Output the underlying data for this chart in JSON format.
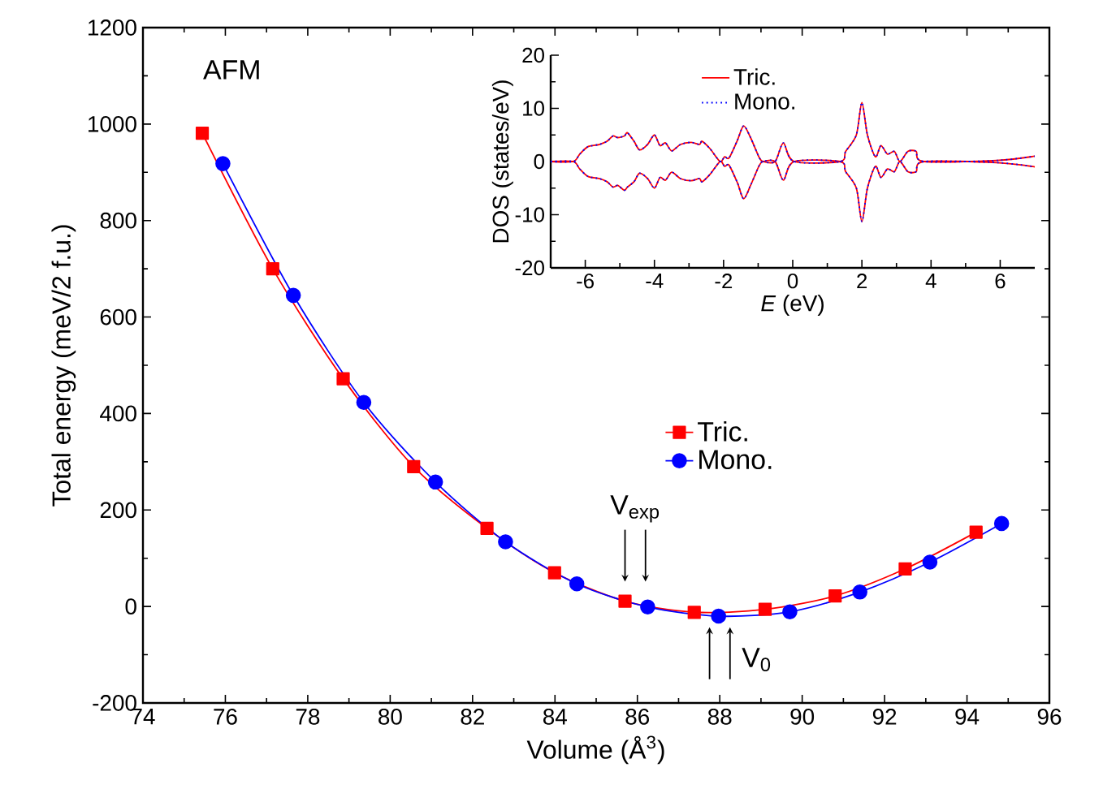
{
  "chart_data": [
    {
      "type": "line",
      "xlabel": "Volume (Å$^{3}$)",
      "ylabel": "Total energy (meV/2 f.u.)",
      "xlim": [
        74,
        96
      ],
      "ylim": [
        -200,
        1200
      ],
      "xticks": [
        74,
        76,
        78,
        80,
        82,
        84,
        86,
        88,
        90,
        92,
        94,
        96
      ],
      "yticks": [
        -200,
        0,
        200,
        400,
        600,
        800,
        1000,
        1200
      ],
      "legend": "right",
      "annotations": [
        "AFM",
        {
          "text": "V$_{exp}$",
          "x": 85.7,
          "y": 11
        },
        {
          "text": "V$_{0}$",
          "x": 88.0,
          "y": -43
        }
      ],
      "series": [
        {
          "name": "Tric.",
          "color": "#ff0000",
          "marker": "square",
          "x": [
            75.44,
            77.15,
            78.86,
            80.57,
            82.35,
            83.99,
            85.7,
            87.38,
            89.1,
            90.8,
            92.5,
            94.22
          ],
          "values": [
            981,
            700,
            472,
            290,
            162,
            70,
            11,
            -12,
            -6,
            22,
            78,
            154
          ]
        },
        {
          "name": "Mono.",
          "color": "#0000ff",
          "marker": "circle",
          "x": [
            75.94,
            77.65,
            79.36,
            81.1,
            82.8,
            84.53,
            86.25,
            87.97,
            89.7,
            91.4,
            93.1,
            94.84
          ],
          "values": [
            918,
            645,
            423,
            258,
            134,
            47,
            -1,
            -20,
            -11,
            30,
            92,
            172
          ]
        }
      ]
    },
    {
      "type": "line",
      "xlabel": "*E* (eV)",
      "ylabel": "DOS (states/eV)",
      "xlim": [
        -7,
        7
      ],
      "ylim": [
        -20,
        20
      ],
      "xticks": [
        -6,
        -4,
        -2,
        0,
        2,
        4,
        6
      ],
      "yticks": [
        -20,
        -10,
        0,
        10,
        20
      ],
      "legend": "top",
      "x": [
        -7,
        -6.35,
        -6.16,
        -5.92,
        -5.6,
        -5.37,
        -5.2,
        -5.06,
        -4.87,
        -4.78,
        -4.59,
        -4.43,
        -4.2,
        -4.0,
        -3.84,
        -3.68,
        -3.5,
        -3.25,
        -2.94,
        -2.7,
        -2.62,
        -2.39,
        -2.1,
        -1.97,
        -1.84,
        -1.6,
        -1.42,
        -1.22,
        -0.98,
        -0.86,
        -0.51,
        -0.27,
        0.04,
        1.37,
        1.53,
        1.84,
        2.0,
        2.16,
        2.39,
        2.55,
        2.74,
        2.94,
        3.1,
        3.33,
        3.57,
        3.8,
        5.9,
        7
      ],
      "series": [
        {
          "name": "Tric.",
          "color": "#ff0000",
          "line_style": "solid",
          "values": [
            0,
            0,
            1.4,
            2.8,
            3.2,
            3.8,
            4.8,
            4.5,
            4.8,
            5.4,
            3.8,
            2.2,
            3.2,
            5.0,
            3.0,
            3.5,
            2.0,
            3.2,
            3.6,
            3.2,
            3.8,
            2.4,
            0,
            0.9,
            0.7,
            4,
            6.7,
            4.5,
            0.9,
            0,
            0,
            3.5,
            0,
            0,
            1.9,
            5,
            11.1,
            5,
            0.9,
            3,
            1.4,
            1.9,
            0,
            1.9,
            1.9,
            0,
            0.2,
            1
          ]
        },
        {
          "color": "#ff0000",
          "line_style": "solid",
          "values": [
            0,
            0,
            -1.4,
            -2.8,
            -3.2,
            -3.8,
            -4.8,
            -4.5,
            -5.4,
            -4.8,
            -3.8,
            -2.2,
            -3.2,
            -5.0,
            -3.0,
            -3.5,
            -2.0,
            -3.2,
            -3.6,
            -3.2,
            -3.8,
            -2.4,
            0,
            -0.9,
            -0.7,
            -4,
            -7,
            -4.5,
            -0.9,
            0,
            0,
            -3.5,
            0,
            0,
            -1.9,
            -5,
            -11.3,
            -5,
            -0.9,
            -3,
            -1.4,
            -1.9,
            0,
            -1.9,
            -1.9,
            0,
            -0.2,
            -1
          ]
        },
        {
          "name": "Mono.",
          "color": "#0000ff",
          "line_style": "dotted",
          "values": [
            0,
            0,
            1.4,
            2.8,
            3.2,
            3.8,
            4.8,
            4.5,
            4.8,
            5.4,
            3.8,
            2.2,
            3.2,
            5.0,
            3.0,
            3.5,
            2.0,
            3.2,
            3.6,
            3.2,
            3.8,
            2.4,
            0,
            0.9,
            0.7,
            4,
            6.7,
            4.5,
            0.9,
            0,
            0,
            3.5,
            0,
            0,
            1.9,
            5,
            11.1,
            5,
            0.9,
            3,
            1.4,
            1.9,
            0,
            1.9,
            1.9,
            0,
            0.2,
            1
          ]
        },
        {
          "color": "#0000ff",
          "line_style": "dotted",
          "values": [
            0,
            0,
            -1.4,
            -2.8,
            -3.2,
            -3.8,
            -4.8,
            -4.5,
            -5.4,
            -4.8,
            -3.8,
            -2.2,
            -3.2,
            -5.0,
            -3.0,
            -3.5,
            -2.0,
            -3.2,
            -3.6,
            -3.2,
            -3.8,
            -2.4,
            0,
            -0.9,
            -0.7,
            -4,
            -7,
            -4.5,
            -0.9,
            0,
            0,
            -3.5,
            0,
            0,
            -1.9,
            -5,
            -11.3,
            -5,
            -0.9,
            -3,
            -1.4,
            -1.9,
            0,
            -1.9,
            -1.9,
            0,
            -0.2,
            -1
          ]
        }
      ]
    }
  ]
}
